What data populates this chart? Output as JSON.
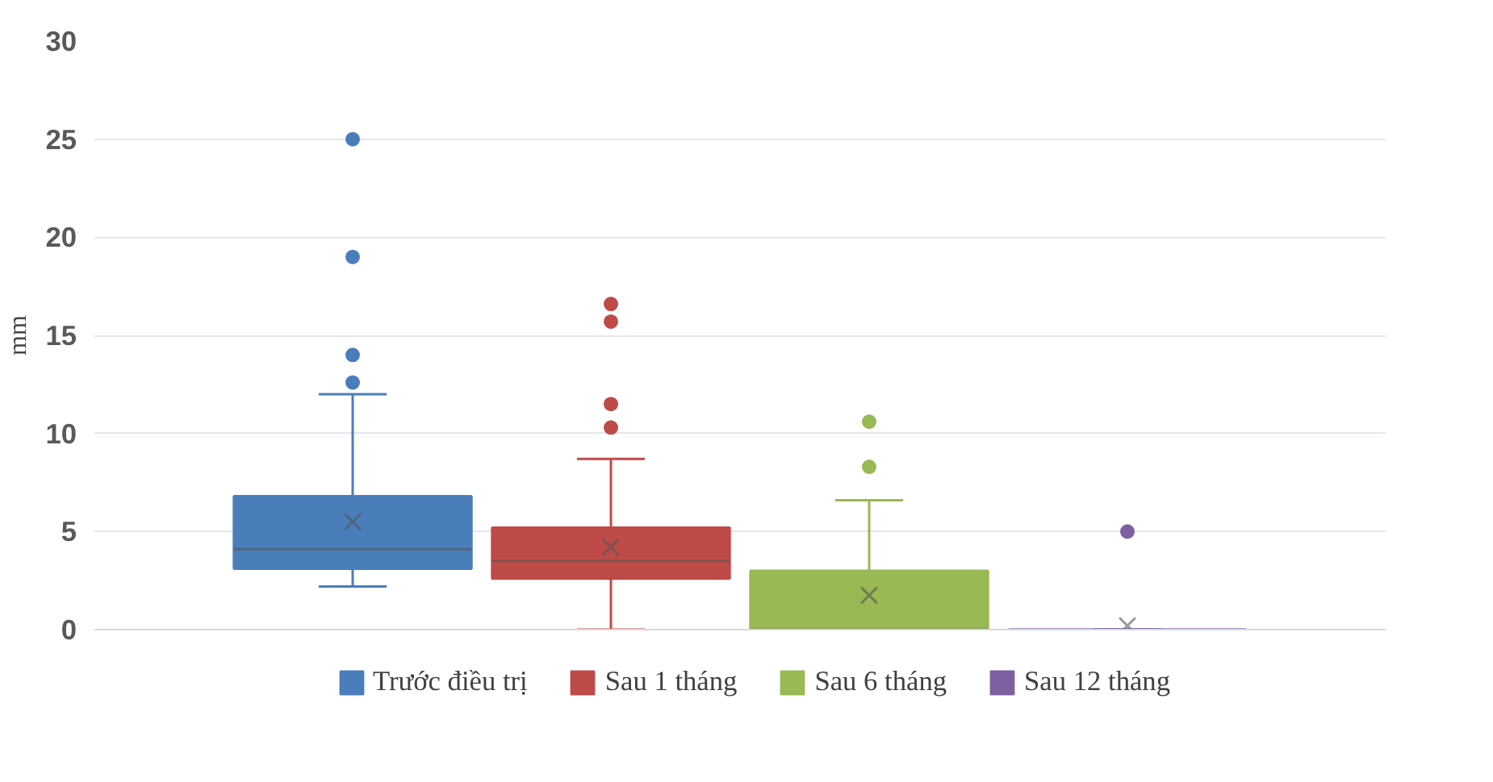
{
  "chart_data": {
    "type": "box",
    "ylabel": "mm",
    "categories": [
      null
    ],
    "ylim": [
      0,
      30
    ],
    "yticks": [
      0,
      5,
      10,
      15,
      20,
      25,
      30
    ],
    "grid": "y",
    "legend": "bottom",
    "marker": "circle",
    "series": [
      {
        "name": "Trước điều trị",
        "color": "#4a7ebb",
        "boxes": [
          {
            "low": 2.2,
            "q1": 3.1,
            "median": 4.1,
            "q3": 6.8,
            "high": 12,
            "mean": 5.5,
            "outliers": [
              12.6,
              14,
              19,
              25
            ]
          }
        ]
      },
      {
        "name": "Sau 1 tháng",
        "color": "#be4b48",
        "boxes": [
          {
            "low": 0,
            "q1": 2.6,
            "median": 3.5,
            "q3": 5.2,
            "high": 8.7,
            "mean": 4.2,
            "outliers": [
              10.3,
              11.5,
              15.7,
              16.6
            ]
          }
        ]
      },
      {
        "name": "Sau 6 tháng",
        "color": "#98b954",
        "boxes": [
          {
            "low": 0,
            "q1": 0,
            "median": 0,
            "q3": 3,
            "high": 6.6,
            "mean": 1.75,
            "outliers": [
              8.3,
              10.6
            ]
          }
        ]
      },
      {
        "name": "Sau 12 tháng",
        "color": "#7d60a0",
        "boxes": [
          {
            "low": 0,
            "q1": 0,
            "median": 0,
            "q3": 0,
            "high": 0,
            "mean": 0.2,
            "outliers": [
              5
            ]
          }
        ]
      }
    ]
  }
}
